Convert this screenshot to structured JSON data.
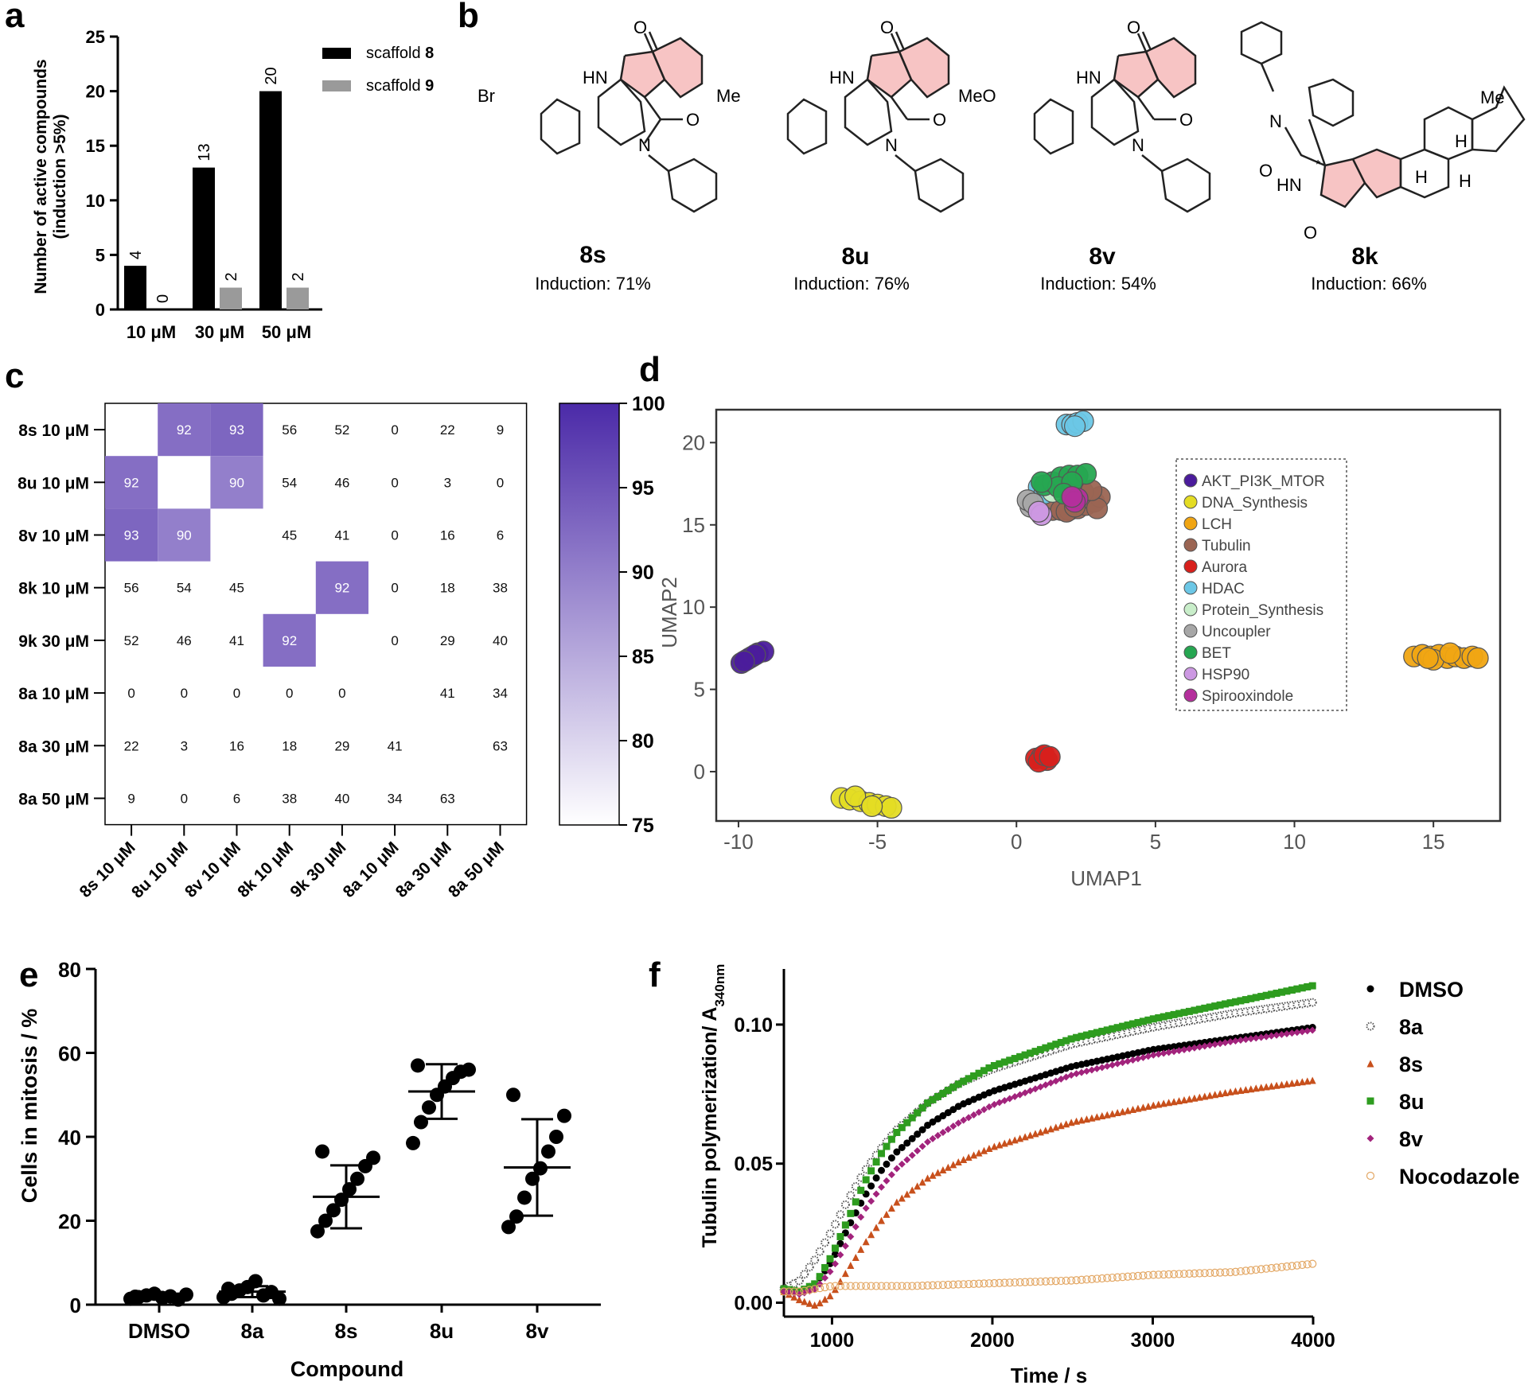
{
  "panels": {
    "a": {
      "letter": "a",
      "ylabel_line1": "Number of active compounds",
      "ylabel_line2": "(induction >5%)",
      "yticks": [
        "0",
        "5",
        "10",
        "15",
        "20",
        "25"
      ],
      "legend": [
        {
          "name": "scaffold",
          "num": "8",
          "color": "#000000"
        },
        {
          "name": "scaffold",
          "num": "9",
          "color": "#9a9a9a"
        }
      ]
    },
    "b": {
      "letter": "b",
      "compounds": [
        {
          "id": "8s",
          "induction": "Induction: 71%",
          "substituent": "Br"
        },
        {
          "id": "8u",
          "induction": "Induction: 76%",
          "substituent": "Me"
        },
        {
          "id": "8v",
          "induction": "Induction: 54%",
          "substituent": "MeO"
        },
        {
          "id": "8k",
          "induction": "Induction: 66%",
          "substituent": "Me"
        }
      ],
      "atom_labels": {
        "hn": "HN",
        "o": "O",
        "n": "N",
        "h": "H",
        "star": "*"
      }
    },
    "c": {
      "letter": "c",
      "colorbar_ticks": [
        "100",
        "95",
        "90",
        "85",
        "80",
        "75"
      ]
    },
    "d": {
      "letter": "d",
      "xlabel": "UMAP1",
      "ylabel": "UMAP2",
      "xticks": [
        "-10",
        "-5",
        "0",
        "5",
        "10",
        "15"
      ],
      "yticks": [
        "0",
        "5",
        "10",
        "15",
        "20"
      ]
    },
    "e": {
      "letter": "e",
      "xlabel": "Compound",
      "ylabel": "Cells in mitosis / %",
      "yticks": [
        "0",
        "20",
        "40",
        "60",
        "80"
      ]
    },
    "f": {
      "letter": "f",
      "xlabel": "Time / s",
      "ylabel_main": "Tubulin polymerization/ A",
      "ylabel_sub": "340nm",
      "xticks": [
        "1000",
        "2000",
        "3000",
        "4000"
      ],
      "yticks": [
        "0.00",
        "0.05",
        "0.10"
      ]
    }
  },
  "chart_data": [
    {
      "panel": "a",
      "type": "bar",
      "categories": [
        "10 μM",
        "30 μM",
        "50 μM"
      ],
      "series": [
        {
          "name": "scaffold 8",
          "values": [
            4,
            13,
            20
          ],
          "color": "#000000"
        },
        {
          "name": "scaffold 9",
          "values": [
            0,
            2,
            2
          ],
          "color": "#9a9a9a"
        }
      ],
      "ylim": [
        0,
        25
      ],
      "data_labels": true
    },
    {
      "panel": "c",
      "type": "heatmap",
      "rows": [
        "8s 10 μM",
        "8u 10 μM",
        "8v 10 μM",
        "8k 10 μM",
        "9k 30 μM",
        "8a 10 μM",
        "8a 30 μM",
        "8a 50 μM"
      ],
      "columns": [
        "8s 10 μM",
        "8u 10 μM",
        "8v 10 μM",
        "8k 10 μM",
        "9k 30 μM",
        "8a 10 μM",
        "8a 30 μM",
        "8a 50 μM"
      ],
      "values": [
        [
          null,
          92,
          93,
          56,
          52,
          0,
          22,
          9
        ],
        [
          92,
          null,
          90,
          54,
          46,
          0,
          3,
          0
        ],
        [
          93,
          90,
          null,
          45,
          41,
          0,
          16,
          6
        ],
        [
          56,
          54,
          45,
          null,
          92,
          0,
          18,
          38
        ],
        [
          52,
          46,
          41,
          92,
          null,
          0,
          29,
          40
        ],
        [
          0,
          0,
          0,
          0,
          0,
          null,
          41,
          34
        ],
        [
          22,
          3,
          16,
          18,
          29,
          41,
          null,
          63
        ],
        [
          9,
          0,
          6,
          38,
          40,
          34,
          63,
          null
        ]
      ],
      "color_range": [
        75,
        100
      ],
      "color_low": "#ffffff",
      "color_high": "#4b2aa8"
    },
    {
      "panel": "d",
      "type": "scatter",
      "xlim": [
        -10.8,
        17.4
      ],
      "ylim": [
        -3,
        22
      ],
      "legend_position": "top-right",
      "series": [
        {
          "name": "AKT_PI3K_MTOR",
          "color": "#4b1c9c",
          "points": [
            [
              -9.9,
              6.6
            ],
            [
              -9.7,
              6.8
            ],
            [
              -9.5,
              7.0
            ],
            [
              -9.3,
              7.2
            ],
            [
              -9.1,
              7.3
            ],
            [
              -9.6,
              6.9
            ],
            [
              -9.4,
              7.1
            ],
            [
              -9.8,
              6.7
            ]
          ]
        },
        {
          "name": "DNA_Synthesis",
          "color": "#e4dc24",
          "points": [
            [
              -6.3,
              -1.6
            ],
            [
              -6.0,
              -1.7
            ],
            [
              -5.6,
              -1.8
            ],
            [
              -5.3,
              -1.9
            ],
            [
              -5.0,
              -2.0
            ],
            [
              -4.7,
              -2.1
            ],
            [
              -4.5,
              -2.2
            ],
            [
              -5.8,
              -1.5
            ],
            [
              -5.2,
              -2.1
            ]
          ]
        },
        {
          "name": "LCH",
          "color": "#f0a513",
          "points": [
            [
              14.3,
              7.0
            ],
            [
              14.6,
              7.1
            ],
            [
              14.9,
              7.0
            ],
            [
              15.2,
              7.1
            ],
            [
              15.5,
              6.9
            ],
            [
              15.8,
              7.0
            ],
            [
              16.1,
              6.9
            ],
            [
              16.4,
              7.0
            ],
            [
              16.6,
              6.9
            ],
            [
              15.0,
              6.8
            ],
            [
              15.6,
              7.2
            ],
            [
              14.8,
              6.9
            ]
          ]
        },
        {
          "name": "Tubulin",
          "color": "#9b6553",
          "points": [
            [
              1.3,
              15.9
            ],
            [
              1.6,
              15.9
            ],
            [
              1.9,
              15.9
            ],
            [
              2.2,
              16.0
            ],
            [
              2.5,
              16.2
            ],
            [
              2.8,
              16.4
            ],
            [
              3.0,
              16.7
            ],
            [
              2.4,
              17.0
            ],
            [
              1.8,
              15.8
            ],
            [
              2.9,
              16.0
            ],
            [
              2.1,
              16.1
            ],
            [
              2.7,
              17.1
            ]
          ]
        },
        {
          "name": "Aurora",
          "color": "#d8201c",
          "points": [
            [
              0.7,
              0.8
            ],
            [
              0.9,
              0.9
            ],
            [
              1.1,
              0.7
            ],
            [
              0.8,
              0.6
            ],
            [
              1.0,
              1.0
            ],
            [
              1.2,
              0.9
            ]
          ]
        },
        {
          "name": "HDAC",
          "color": "#6cc7e6",
          "points": [
            [
              1.8,
              21.1
            ],
            [
              2.0,
              21.1
            ],
            [
              2.2,
              21.2
            ],
            [
              2.4,
              21.3
            ],
            [
              2.1,
              21.0
            ],
            [
              0.8,
              17.3
            ],
            [
              1.0,
              16.9
            ]
          ]
        },
        {
          "name": "Protein_Synthesis",
          "color": "#c9eeca",
          "points": [
            [
              1.3,
              17.0
            ]
          ]
        },
        {
          "name": "Uncoupler",
          "color": "#a7a7a7",
          "points": [
            [
              0.5,
              16.1
            ],
            [
              0.4,
              16.5
            ],
            [
              0.6,
              16.3
            ]
          ]
        },
        {
          "name": "BET",
          "color": "#26a651",
          "points": [
            [
              1.0,
              17.4
            ],
            [
              1.3,
              17.6
            ],
            [
              1.6,
              17.9
            ],
            [
              1.9,
              18.0
            ],
            [
              2.2,
              18.0
            ],
            [
              2.5,
              18.1
            ],
            [
              1.5,
              17.3
            ],
            [
              0.9,
              17.6
            ],
            [
              2.0,
              17.6
            ],
            [
              1.7,
              16.9
            ]
          ]
        },
        {
          "name": "HSP90",
          "color": "#cc98e2",
          "points": [
            [
              0.9,
              15.6
            ],
            [
              0.8,
              15.8
            ]
          ]
        },
        {
          "name": "Spirooxindole",
          "color": "#b42f9c",
          "points": [
            [
              2.2,
              16.6
            ],
            [
              2.1,
              16.4
            ],
            [
              2.0,
              16.7
            ]
          ]
        }
      ]
    },
    {
      "panel": "e",
      "type": "scatter",
      "categories": [
        "DMSO",
        "8a",
        "8s",
        "8u",
        "8v"
      ],
      "ylim": [
        0,
        80
      ],
      "values": [
        [
          1.4,
          1.8,
          2.2,
          2.6,
          1.6,
          2.0,
          1.2,
          2.4,
          1.9
        ],
        [
          1.8,
          2.6,
          3.4,
          4.2,
          5.6,
          2.2,
          3.0,
          1.4,
          3.8
        ],
        [
          17.5,
          20.0,
          22.5,
          25.0,
          27.5,
          30.0,
          33.0,
          35.0,
          36.5
        ],
        [
          38.5,
          43.5,
          47.0,
          50.0,
          52.0,
          54.0,
          55.5,
          56.0,
          57.0
        ],
        [
          18.5,
          21.0,
          25.5,
          30.0,
          32.5,
          36.5,
          40.0,
          45.0,
          50.0
        ]
      ],
      "mean": [
        2.0,
        3.1,
        25.7,
        50.8,
        32.7
      ],
      "sd": [
        0.4,
        1.3,
        7.5,
        6.5,
        11.5
      ]
    },
    {
      "panel": "f",
      "type": "line",
      "xlim": [
        700,
        4000
      ],
      "ylim": [
        -0.005,
        0.12
      ],
      "series": [
        {
          "name": "DMSO",
          "marker": "circle",
          "color": "#000000",
          "points": [
            [
              700,
              0.004
            ],
            [
              800,
              0.004
            ],
            [
              900,
              0.007
            ],
            [
              1000,
              0.015
            ],
            [
              1100,
              0.027
            ],
            [
              1200,
              0.038
            ],
            [
              1300,
              0.047
            ],
            [
              1400,
              0.054
            ],
            [
              1600,
              0.064
            ],
            [
              1800,
              0.071
            ],
            [
              2000,
              0.076
            ],
            [
              2500,
              0.085
            ],
            [
              3000,
              0.091
            ],
            [
              3500,
              0.095
            ],
            [
              4000,
              0.099
            ]
          ]
        },
        {
          "name": "8a",
          "marker": "circle-dotted",
          "color": "#555555",
          "points": [
            [
              700,
              0.005
            ],
            [
              800,
              0.008
            ],
            [
              900,
              0.016
            ],
            [
              1000,
              0.026
            ],
            [
              1100,
              0.037
            ],
            [
              1200,
              0.047
            ],
            [
              1300,
              0.055
            ],
            [
              1400,
              0.062
            ],
            [
              1600,
              0.072
            ],
            [
              1800,
              0.079
            ],
            [
              2000,
              0.084
            ],
            [
              2500,
              0.093
            ],
            [
              3000,
              0.099
            ],
            [
              3500,
              0.104
            ],
            [
              4000,
              0.108
            ]
          ]
        },
        {
          "name": "8s",
          "marker": "triangle",
          "color": "#c8501c",
          "points": [
            [
              700,
              0.004
            ],
            [
              800,
              0.001
            ],
            [
              900,
              -0.001
            ],
            [
              1000,
              0.003
            ],
            [
              1100,
              0.012
            ],
            [
              1200,
              0.021
            ],
            [
              1300,
              0.029
            ],
            [
              1400,
              0.036
            ],
            [
              1600,
              0.045
            ],
            [
              1800,
              0.051
            ],
            [
              2000,
              0.056
            ],
            [
              2500,
              0.065
            ],
            [
              3000,
              0.071
            ],
            [
              3500,
              0.076
            ],
            [
              4000,
              0.08
            ]
          ]
        },
        {
          "name": "8u",
          "marker": "square",
          "color": "#2e9c1f",
          "points": [
            [
              700,
              0.005
            ],
            [
              800,
              0.004
            ],
            [
              900,
              0.007
            ],
            [
              1000,
              0.017
            ],
            [
              1100,
              0.03
            ],
            [
              1200,
              0.043
            ],
            [
              1300,
              0.053
            ],
            [
              1400,
              0.061
            ],
            [
              1600,
              0.072
            ],
            [
              1800,
              0.079
            ],
            [
              2000,
              0.085
            ],
            [
              2500,
              0.095
            ],
            [
              3000,
              0.102
            ],
            [
              3500,
              0.108
            ],
            [
              4000,
              0.114
            ]
          ]
        },
        {
          "name": "8v",
          "marker": "diamond",
          "color": "#a2237c",
          "points": [
            [
              700,
              0.004
            ],
            [
              800,
              0.003
            ],
            [
              900,
              0.005
            ],
            [
              1000,
              0.012
            ],
            [
              1100,
              0.022
            ],
            [
              1200,
              0.033
            ],
            [
              1300,
              0.041
            ],
            [
              1400,
              0.048
            ],
            [
              1600,
              0.058
            ],
            [
              1800,
              0.065
            ],
            [
              2000,
              0.071
            ],
            [
              2500,
              0.082
            ],
            [
              3000,
              0.089
            ],
            [
              3500,
              0.094
            ],
            [
              4000,
              0.098
            ]
          ]
        },
        {
          "name": "Nocodazole",
          "marker": "circle-open",
          "color": "#e3a764",
          "points": [
            [
              700,
              0.004
            ],
            [
              800,
              0.004
            ],
            [
              900,
              0.005
            ],
            [
              1000,
              0.006
            ],
            [
              1200,
              0.006
            ],
            [
              1500,
              0.006
            ],
            [
              2000,
              0.007
            ],
            [
              2500,
              0.008
            ],
            [
              3000,
              0.01
            ],
            [
              3500,
              0.011
            ],
            [
              4000,
              0.014
            ]
          ]
        }
      ]
    }
  ]
}
